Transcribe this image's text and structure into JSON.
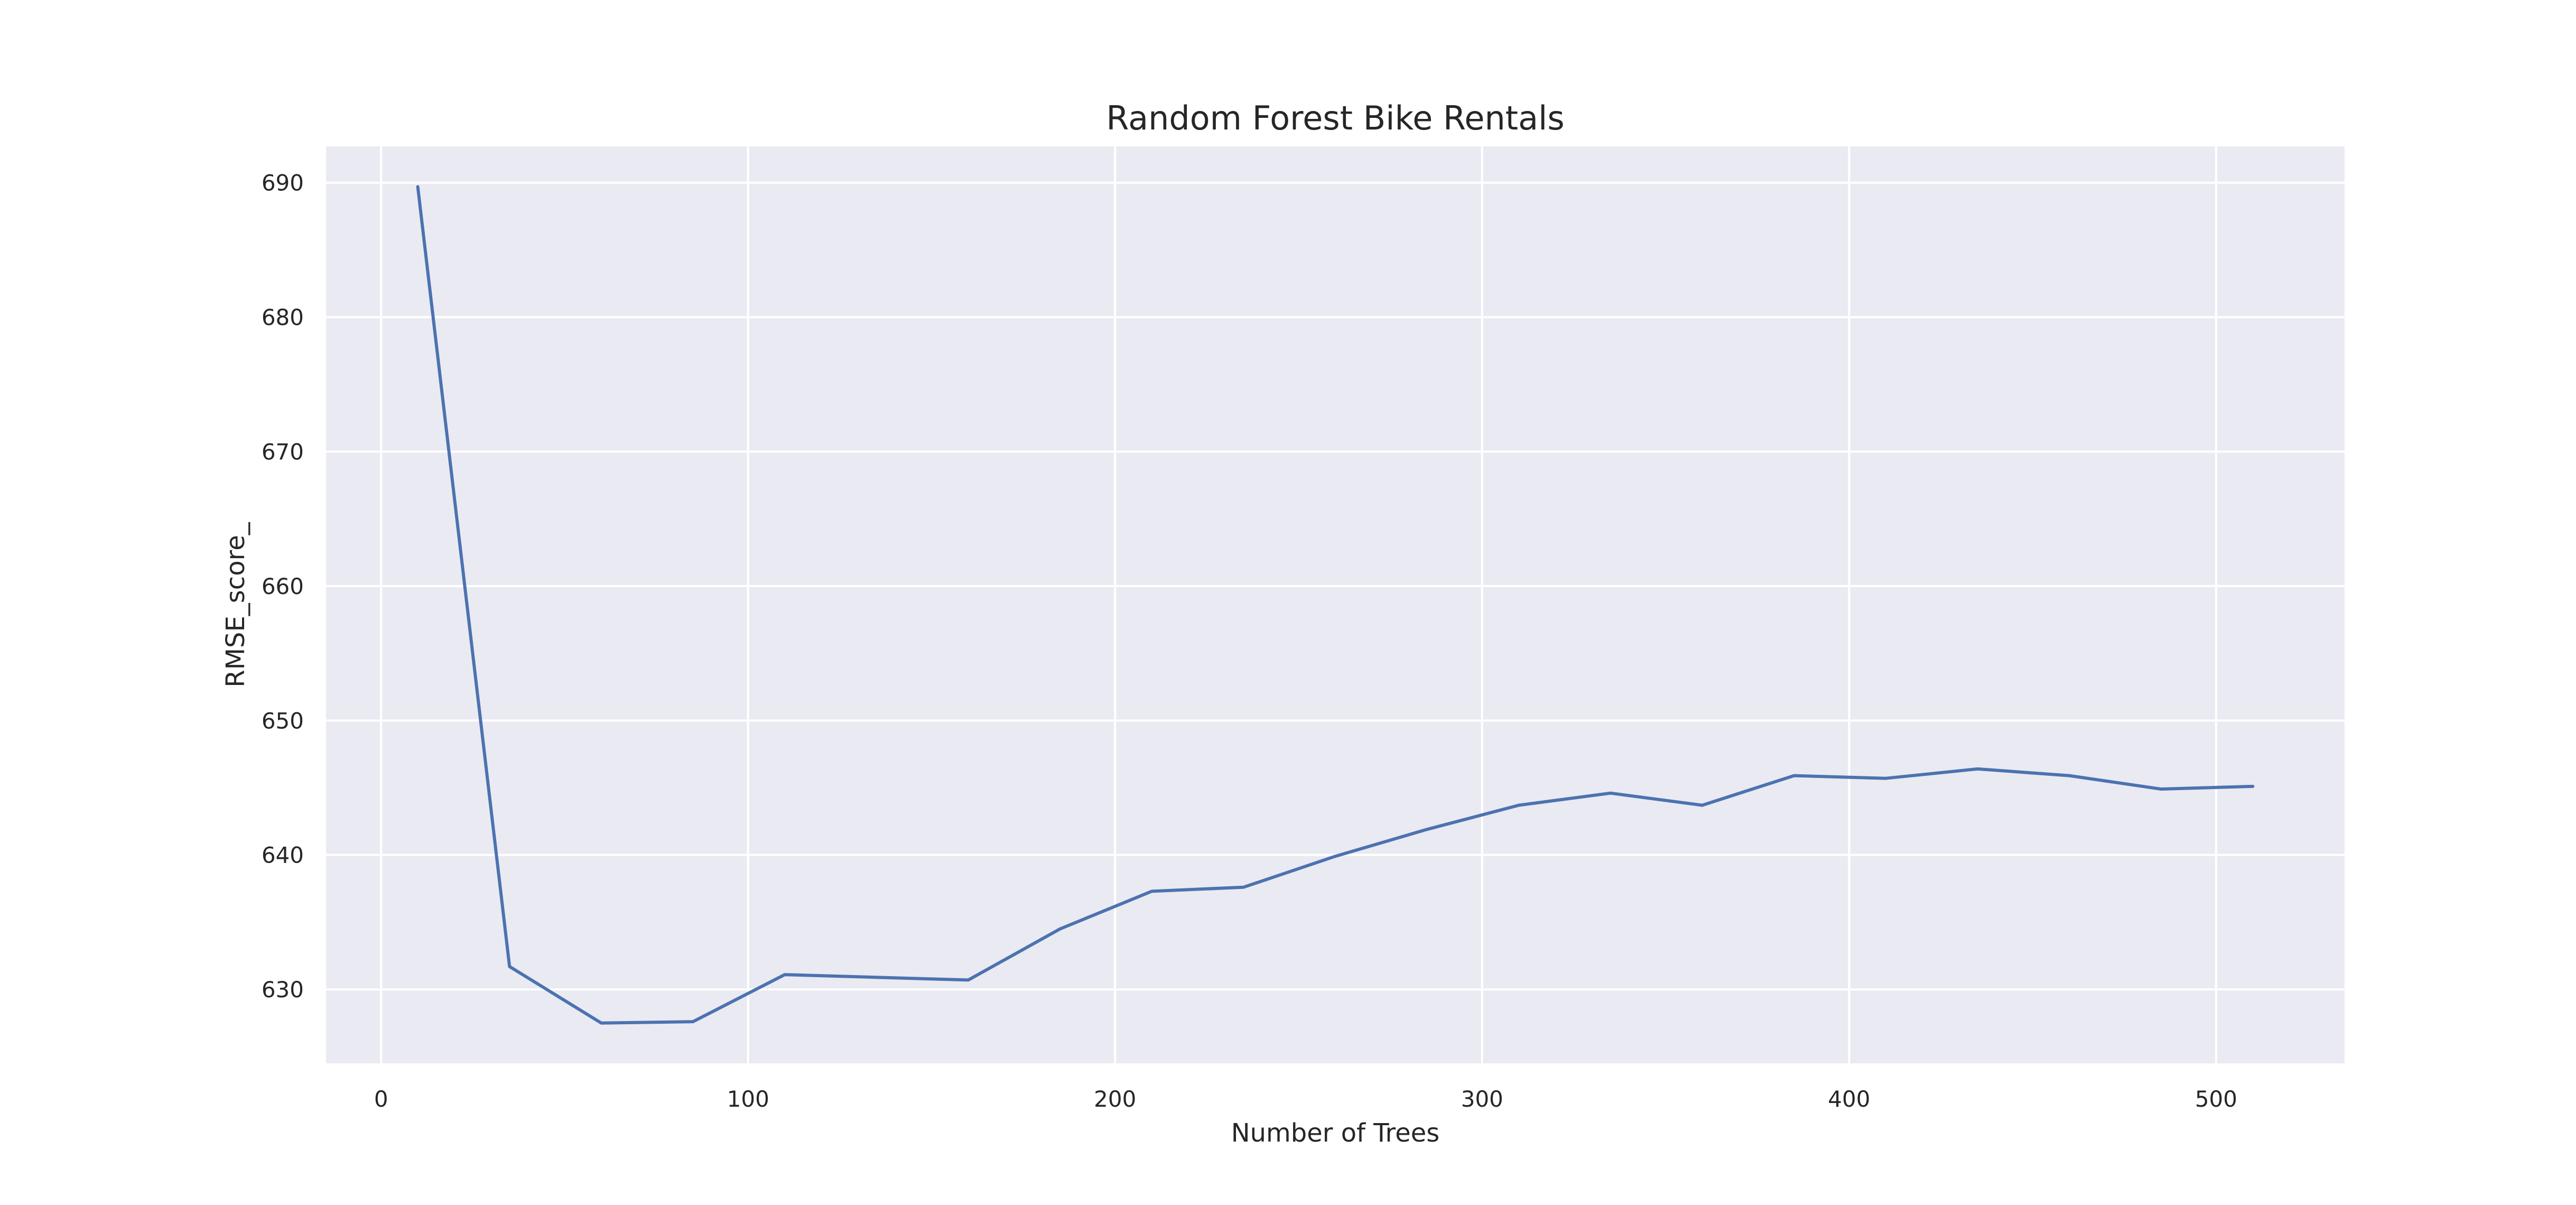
{
  "chart_data": {
    "type": "line",
    "title": "Random Forest Bike Rentals",
    "xlabel": "Number of Trees",
    "ylabel": "RMSE_score_",
    "xlim": [
      -15,
      535
    ],
    "ylim": [
      624.5,
      692.7
    ],
    "xticks": [
      0,
      100,
      200,
      300,
      400,
      500
    ],
    "yticks": [
      630,
      640,
      650,
      660,
      670,
      680,
      690
    ],
    "grid": true,
    "background": "#EAEAF2",
    "grid_color": "#FFFFFF",
    "series": [
      {
        "color": "#4C72B0",
        "x": [
          10,
          35,
          60,
          85,
          110,
          135,
          160,
          185,
          210,
          235,
          260,
          285,
          310,
          335,
          360,
          385,
          410,
          435,
          460,
          485,
          510
        ],
        "y": [
          689.7,
          631.7,
          627.5,
          627.6,
          631.1,
          630.9,
          630.7,
          634.5,
          637.3,
          637.6,
          639.9,
          641.9,
          643.7,
          644.6,
          643.7,
          645.9,
          645.7,
          646.4,
          645.9,
          644.9,
          645.1
        ]
      }
    ]
  }
}
